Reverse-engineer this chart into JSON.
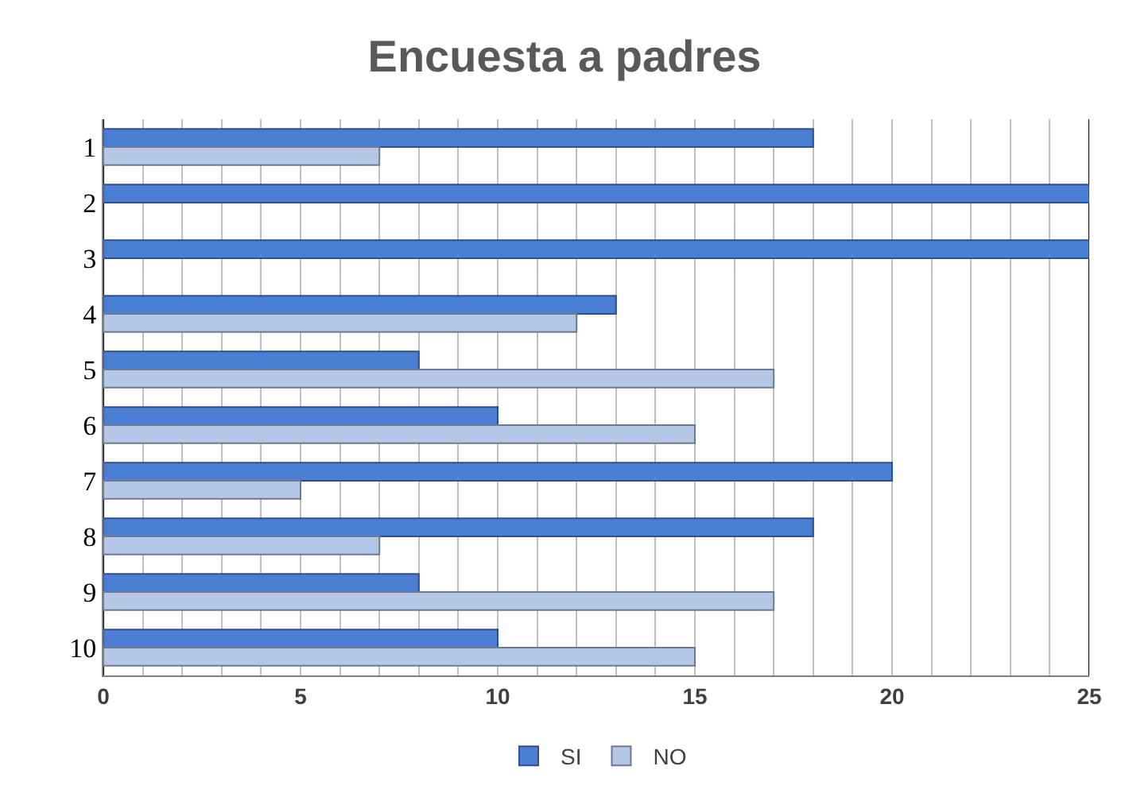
{
  "chart_data": {
    "type": "bar",
    "orientation": "horizontal",
    "title": "Encuesta a padres",
    "categories": [
      "1",
      "2",
      "3",
      "4",
      "5",
      "6",
      "7",
      "8",
      "9",
      "10"
    ],
    "series": [
      {
        "name": "SI",
        "color": "#4a7fd4",
        "values": [
          18,
          25,
          25,
          13,
          8,
          10,
          20,
          18,
          8,
          10
        ]
      },
      {
        "name": "NO",
        "color": "#b4c7e7",
        "values": [
          7,
          null,
          null,
          12,
          17,
          15,
          5,
          7,
          17,
          15
        ]
      }
    ],
    "xlim": [
      0,
      25
    ],
    "xticks": [
      0,
      {
        "value": 1,
        "label": null
      },
      {
        "value": 2,
        "label": null
      },
      {
        "value": 3,
        "label": null
      },
      {
        "value": 4,
        "label": null
      },
      5,
      {
        "value": 6,
        "label": null
      },
      {
        "value": 7,
        "label": null
      },
      {
        "value": 8,
        "label": null
      },
      {
        "value": 9,
        "label": null
      },
      10,
      {
        "value": 11,
        "label": null
      },
      {
        "value": 12,
        "label": null
      },
      {
        "value": 13,
        "label": null
      },
      {
        "value": 14,
        "label": null
      },
      15,
      {
        "value": 16,
        "label": null
      },
      {
        "value": 17,
        "label": null
      },
      {
        "value": 18,
        "label": null
      },
      {
        "value": 19,
        "label": null
      },
      20,
      {
        "value": 21,
        "label": null
      },
      {
        "value": 22,
        "label": null
      },
      {
        "value": 23,
        "label": null
      },
      {
        "value": 24,
        "label": null
      },
      25
    ],
    "grid": "x",
    "legend": "bottom"
  }
}
